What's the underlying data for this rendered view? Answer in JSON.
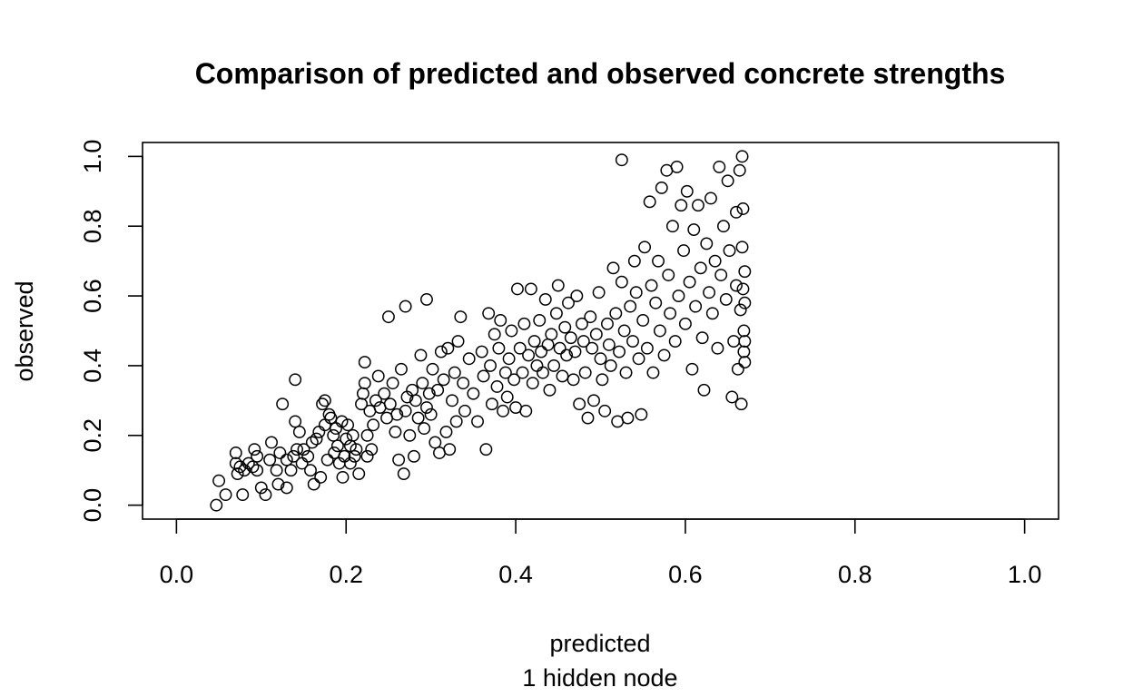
{
  "chart_data": {
    "type": "scatter",
    "title": "Comparison of predicted and observed concrete strengths",
    "xlabel": "predicted",
    "xlabel_sub": "1 hidden node",
    "ylabel": "observed",
    "xlim": [
      -0.04,
      1.04
    ],
    "ylim": [
      -0.04,
      1.04
    ],
    "x_ticks": [
      "0.0",
      "0.2",
      "0.4",
      "0.6",
      "0.8",
      "1.0"
    ],
    "y_ticks": [
      "0.0",
      "0.2",
      "0.4",
      "0.6",
      "0.8",
      "1.0"
    ],
    "grid": false,
    "legend": "none",
    "marker": "open-circle",
    "colors": {
      "points": "#000000",
      "axes": "#000000",
      "background": "#ffffff"
    },
    "points": [
      [
        0.047,
        0.0
      ],
      [
        0.05,
        0.07
      ],
      [
        0.058,
        0.03
      ],
      [
        0.07,
        0.15
      ],
      [
        0.07,
        0.12
      ],
      [
        0.072,
        0.09
      ],
      [
        0.075,
        0.11
      ],
      [
        0.078,
        0.03
      ],
      [
        0.08,
        0.1
      ],
      [
        0.085,
        0.12
      ],
      [
        0.09,
        0.11
      ],
      [
        0.092,
        0.16
      ],
      [
        0.095,
        0.14
      ],
      [
        0.095,
        0.1
      ],
      [
        0.1,
        0.05
      ],
      [
        0.105,
        0.03
      ],
      [
        0.11,
        0.13
      ],
      [
        0.112,
        0.18
      ],
      [
        0.118,
        0.1
      ],
      [
        0.12,
        0.06
      ],
      [
        0.122,
        0.15
      ],
      [
        0.125,
        0.29
      ],
      [
        0.13,
        0.05
      ],
      [
        0.13,
        0.13
      ],
      [
        0.135,
        0.1
      ],
      [
        0.138,
        0.14
      ],
      [
        0.14,
        0.36
      ],
      [
        0.14,
        0.24
      ],
      [
        0.142,
        0.16
      ],
      [
        0.145,
        0.21
      ],
      [
        0.148,
        0.12
      ],
      [
        0.15,
        0.16
      ],
      [
        0.155,
        0.14
      ],
      [
        0.158,
        0.1
      ],
      [
        0.16,
        0.18
      ],
      [
        0.162,
        0.06
      ],
      [
        0.165,
        0.19
      ],
      [
        0.168,
        0.21
      ],
      [
        0.17,
        0.08
      ],
      [
        0.172,
        0.29
      ],
      [
        0.175,
        0.23
      ],
      [
        0.175,
        0.3
      ],
      [
        0.178,
        0.13
      ],
      [
        0.18,
        0.26
      ],
      [
        0.182,
        0.25
      ],
      [
        0.185,
        0.2
      ],
      [
        0.186,
        0.15
      ],
      [
        0.188,
        0.22
      ],
      [
        0.19,
        0.17
      ],
      [
        0.192,
        0.12
      ],
      [
        0.195,
        0.24
      ],
      [
        0.196,
        0.08
      ],
      [
        0.198,
        0.14
      ],
      [
        0.2,
        0.19
      ],
      [
        0.202,
        0.23
      ],
      [
        0.205,
        0.17
      ],
      [
        0.205,
        0.12
      ],
      [
        0.208,
        0.2
      ],
      [
        0.21,
        0.14
      ],
      [
        0.212,
        0.16
      ],
      [
        0.215,
        0.09
      ],
      [
        0.218,
        0.29
      ],
      [
        0.22,
        0.32
      ],
      [
        0.222,
        0.35
      ],
      [
        0.222,
        0.41
      ],
      [
        0.225,
        0.14
      ],
      [
        0.225,
        0.2
      ],
      [
        0.228,
        0.27
      ],
      [
        0.23,
        0.16
      ],
      [
        0.232,
        0.23
      ],
      [
        0.235,
        0.3
      ],
      [
        0.238,
        0.37
      ],
      [
        0.24,
        0.28
      ],
      [
        0.245,
        0.32
      ],
      [
        0.248,
        0.25
      ],
      [
        0.25,
        0.54
      ],
      [
        0.252,
        0.29
      ],
      [
        0.255,
        0.35
      ],
      [
        0.258,
        0.21
      ],
      [
        0.26,
        0.26
      ],
      [
        0.262,
        0.13
      ],
      [
        0.265,
        0.39
      ],
      [
        0.268,
        0.09
      ],
      [
        0.27,
        0.27
      ],
      [
        0.27,
        0.57
      ],
      [
        0.272,
        0.31
      ],
      [
        0.275,
        0.2
      ],
      [
        0.278,
        0.33
      ],
      [
        0.28,
        0.14
      ],
      [
        0.282,
        0.3
      ],
      [
        0.285,
        0.25
      ],
      [
        0.288,
        0.43
      ],
      [
        0.29,
        0.35
      ],
      [
        0.292,
        0.22
      ],
      [
        0.295,
        0.59
      ],
      [
        0.295,
        0.28
      ],
      [
        0.298,
        0.32
      ],
      [
        0.3,
        0.26
      ],
      [
        0.302,
        0.39
      ],
      [
        0.305,
        0.18
      ],
      [
        0.308,
        0.33
      ],
      [
        0.31,
        0.15
      ],
      [
        0.312,
        0.44
      ],
      [
        0.315,
        0.36
      ],
      [
        0.318,
        0.21
      ],
      [
        0.32,
        0.45
      ],
      [
        0.322,
        0.16
      ],
      [
        0.325,
        0.3
      ],
      [
        0.328,
        0.38
      ],
      [
        0.33,
        0.24
      ],
      [
        0.332,
        0.47
      ],
      [
        0.335,
        0.54
      ],
      [
        0.338,
        0.35
      ],
      [
        0.34,
        0.27
      ],
      [
        0.345,
        0.42
      ],
      [
        0.35,
        0.32
      ],
      [
        0.355,
        0.24
      ],
      [
        0.36,
        0.44
      ],
      [
        0.362,
        0.37
      ],
      [
        0.365,
        0.16
      ],
      [
        0.368,
        0.55
      ],
      [
        0.37,
        0.4
      ],
      [
        0.372,
        0.29
      ],
      [
        0.375,
        0.49
      ],
      [
        0.378,
        0.34
      ],
      [
        0.38,
        0.45
      ],
      [
        0.382,
        0.53
      ],
      [
        0.385,
        0.27
      ],
      [
        0.388,
        0.38
      ],
      [
        0.39,
        0.31
      ],
      [
        0.392,
        0.42
      ],
      [
        0.395,
        0.5
      ],
      [
        0.398,
        0.36
      ],
      [
        0.4,
        0.28
      ],
      [
        0.402,
        0.62
      ],
      [
        0.405,
        0.45
      ],
      [
        0.408,
        0.38
      ],
      [
        0.41,
        0.52
      ],
      [
        0.412,
        0.27
      ],
      [
        0.415,
        0.43
      ],
      [
        0.418,
        0.62
      ],
      [
        0.42,
        0.35
      ],
      [
        0.422,
        0.47
      ],
      [
        0.425,
        0.4
      ],
      [
        0.428,
        0.53
      ],
      [
        0.43,
        0.44
      ],
      [
        0.432,
        0.38
      ],
      [
        0.435,
        0.59
      ],
      [
        0.438,
        0.46
      ],
      [
        0.44,
        0.33
      ],
      [
        0.442,
        0.49
      ],
      [
        0.445,
        0.4
      ],
      [
        0.448,
        0.55
      ],
      [
        0.45,
        0.63
      ],
      [
        0.452,
        0.45
      ],
      [
        0.455,
        0.37
      ],
      [
        0.458,
        0.51
      ],
      [
        0.46,
        0.43
      ],
      [
        0.462,
        0.58
      ],
      [
        0.465,
        0.48
      ],
      [
        0.468,
        0.36
      ],
      [
        0.47,
        0.44
      ],
      [
        0.472,
        0.6
      ],
      [
        0.475,
        0.29
      ],
      [
        0.478,
        0.52
      ],
      [
        0.48,
        0.47
      ],
      [
        0.482,
        0.38
      ],
      [
        0.485,
        0.25
      ],
      [
        0.488,
        0.54
      ],
      [
        0.49,
        0.45
      ],
      [
        0.492,
        0.3
      ],
      [
        0.495,
        0.49
      ],
      [
        0.498,
        0.61
      ],
      [
        0.5,
        0.42
      ],
      [
        0.502,
        0.36
      ],
      [
        0.505,
        0.27
      ],
      [
        0.508,
        0.52
      ],
      [
        0.51,
        0.46
      ],
      [
        0.512,
        0.4
      ],
      [
        0.515,
        0.68
      ],
      [
        0.518,
        0.55
      ],
      [
        0.52,
        0.24
      ],
      [
        0.522,
        0.44
      ],
      [
        0.525,
        0.99
      ],
      [
        0.525,
        0.64
      ],
      [
        0.528,
        0.5
      ],
      [
        0.53,
        0.38
      ],
      [
        0.532,
        0.25
      ],
      [
        0.535,
        0.57
      ],
      [
        0.538,
        0.47
      ],
      [
        0.54,
        0.7
      ],
      [
        0.542,
        0.61
      ],
      [
        0.545,
        0.42
      ],
      [
        0.548,
        0.26
      ],
      [
        0.55,
        0.53
      ],
      [
        0.552,
        0.74
      ],
      [
        0.555,
        0.45
      ],
      [
        0.558,
        0.87
      ],
      [
        0.56,
        0.63
      ],
      [
        0.562,
        0.38
      ],
      [
        0.565,
        0.58
      ],
      [
        0.568,
        0.7
      ],
      [
        0.57,
        0.5
      ],
      [
        0.572,
        0.91
      ],
      [
        0.575,
        0.43
      ],
      [
        0.578,
        0.96
      ],
      [
        0.58,
        0.66
      ],
      [
        0.582,
        0.55
      ],
      [
        0.585,
        0.8
      ],
      [
        0.588,
        0.47
      ],
      [
        0.59,
        0.97
      ],
      [
        0.592,
        0.6
      ],
      [
        0.595,
        0.86
      ],
      [
        0.598,
        0.73
      ],
      [
        0.6,
        0.52
      ],
      [
        0.602,
        0.9
      ],
      [
        0.605,
        0.64
      ],
      [
        0.608,
        0.39
      ],
      [
        0.61,
        0.79
      ],
      [
        0.612,
        0.57
      ],
      [
        0.615,
        0.86
      ],
      [
        0.618,
        0.68
      ],
      [
        0.62,
        0.48
      ],
      [
        0.622,
        0.33
      ],
      [
        0.625,
        0.75
      ],
      [
        0.628,
        0.61
      ],
      [
        0.63,
        0.88
      ],
      [
        0.632,
        0.55
      ],
      [
        0.635,
        0.7
      ],
      [
        0.638,
        0.45
      ],
      [
        0.64,
        0.97
      ],
      [
        0.642,
        0.66
      ],
      [
        0.645,
        0.8
      ],
      [
        0.648,
        0.59
      ],
      [
        0.65,
        0.93
      ],
      [
        0.652,
        0.73
      ],
      [
        0.655,
        0.31
      ],
      [
        0.657,
        0.47
      ],
      [
        0.66,
        0.84
      ],
      [
        0.66,
        0.63
      ],
      [
        0.662,
        0.39
      ],
      [
        0.664,
        0.96
      ],
      [
        0.665,
        0.56
      ],
      [
        0.666,
        0.29
      ],
      [
        0.667,
        1.0
      ],
      [
        0.667,
        0.74
      ],
      [
        0.668,
        0.85
      ],
      [
        0.668,
        0.62
      ],
      [
        0.669,
        0.5
      ],
      [
        0.669,
        0.44
      ],
      [
        0.67,
        0.67
      ],
      [
        0.67,
        0.58
      ],
      [
        0.67,
        0.47
      ],
      [
        0.67,
        0.41
      ]
    ]
  }
}
